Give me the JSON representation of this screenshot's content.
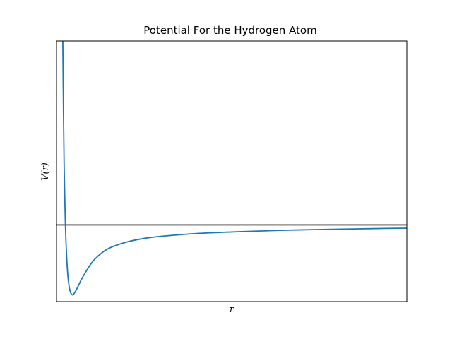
{
  "chart_data": {
    "type": "line",
    "title": "Potential For the Hydrogen Atom",
    "xlabel": "r",
    "ylabel": "V(r)",
    "xlim": [
      0,
      10
    ],
    "ylim": [
      -1.25,
      3
    ],
    "x_ticks_visible": false,
    "y_ticks_visible": false,
    "grid": false,
    "reference_line": {
      "y": 0,
      "color": "#000000"
    },
    "series": [
      {
        "color": "#1f77b4",
        "x": [
          0.18,
          0.2,
          0.22,
          0.25,
          0.28,
          0.32,
          0.36,
          0.4,
          0.45,
          0.5,
          0.6,
          0.7,
          0.8,
          1.0,
          1.2,
          1.5,
          2.0,
          2.5,
          3.0,
          4.0,
          5.0,
          6.0,
          7.0,
          8.0,
          9.0,
          10.0
        ],
        "y": [
          3.0,
          1.8,
          0.9,
          0.1,
          -0.4,
          -0.8,
          -1.0,
          -1.1,
          -1.14,
          -1.12,
          -1.02,
          -0.9,
          -0.8,
          -0.62,
          -0.5,
          -0.38,
          -0.28,
          -0.22,
          -0.185,
          -0.14,
          -0.115,
          -0.095,
          -0.08,
          -0.07,
          -0.06,
          -0.052
        ]
      }
    ]
  }
}
